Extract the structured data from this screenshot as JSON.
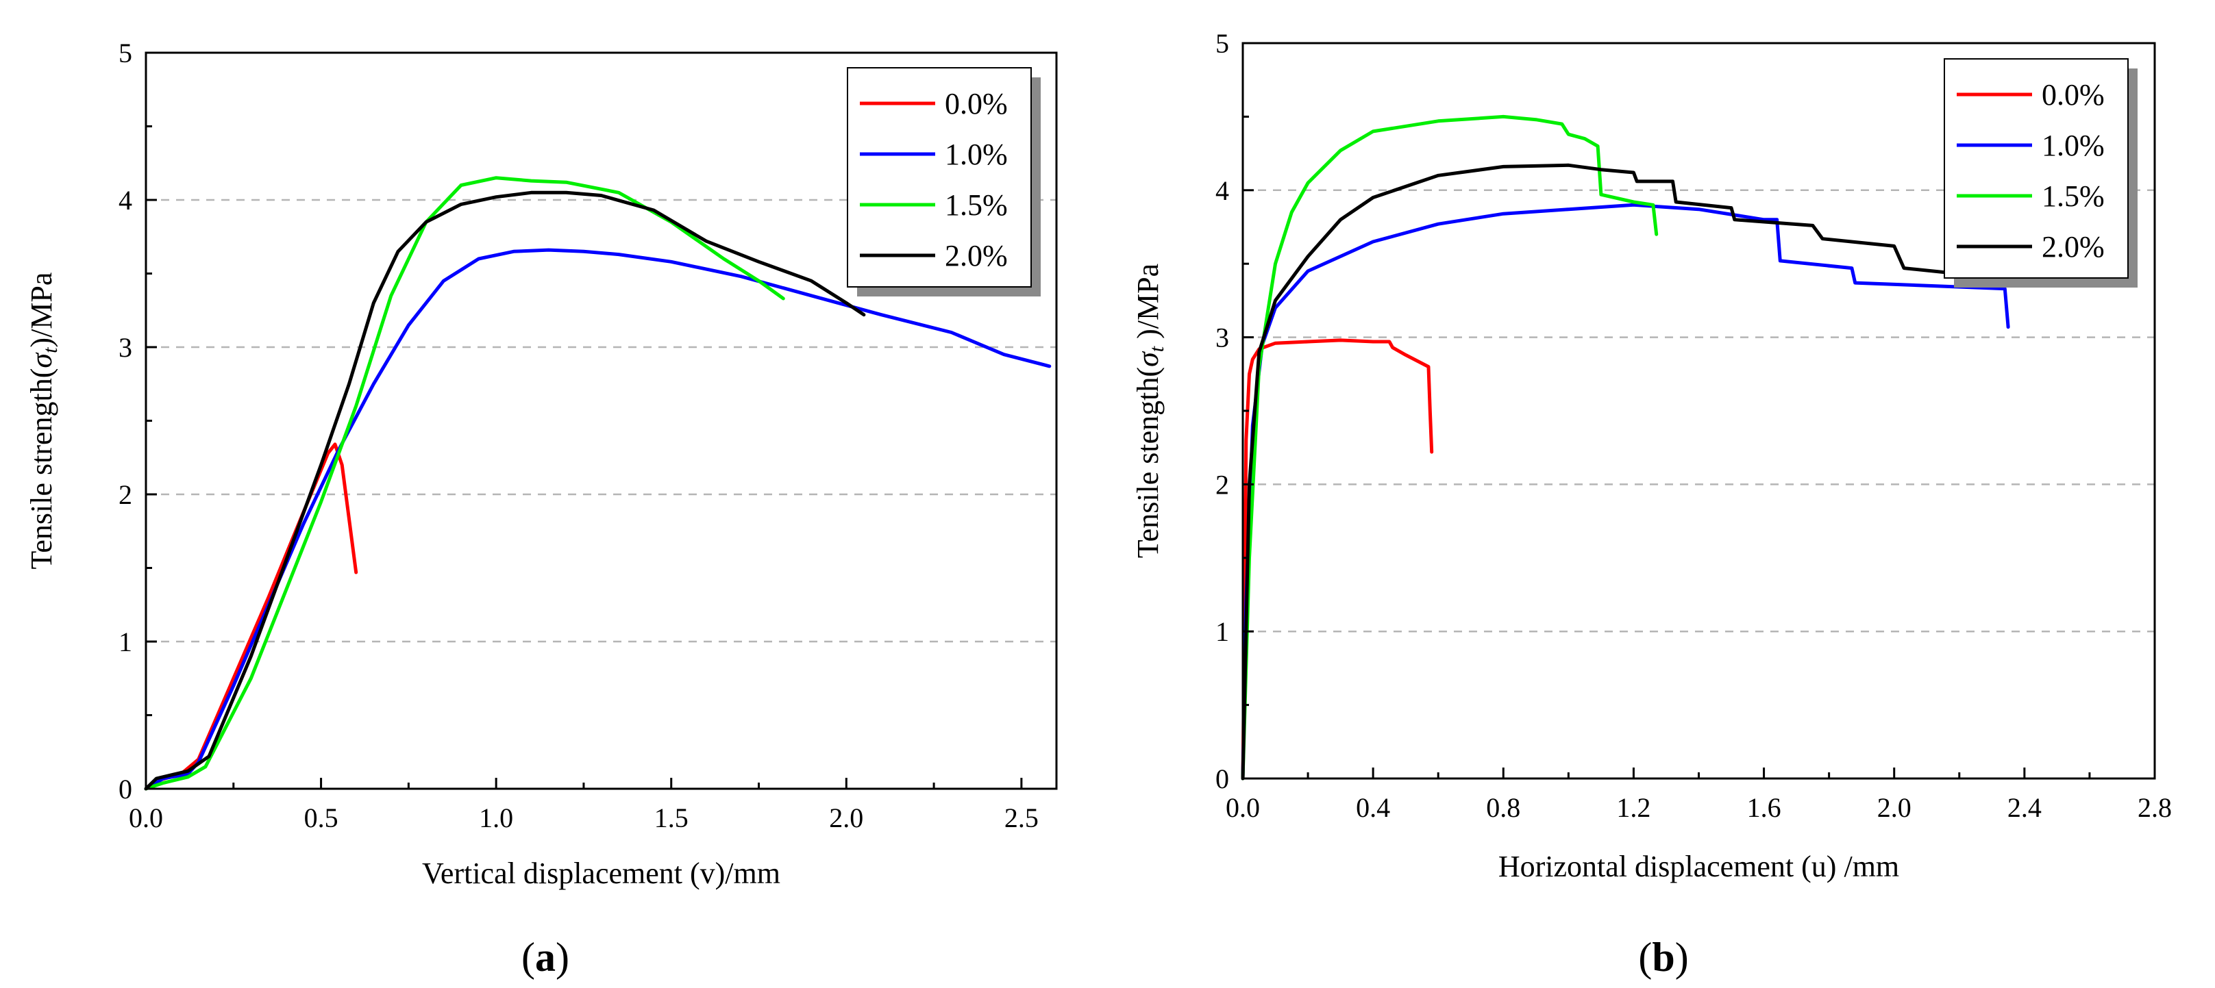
{
  "chart_data": [
    {
      "type": "line",
      "panel_label": "a",
      "xlabel": "Vertical displacement (v)/mm",
      "ylabel": {
        "prefix": "Tensile strength(",
        "symbol": "σ",
        "subscript": "t",
        "suffix": ")/MPa"
      },
      "xlim": [
        0,
        2.6
      ],
      "ylim": [
        0,
        5
      ],
      "xticks": [
        0.0,
        0.5,
        1.0,
        1.5,
        2.0,
        2.5
      ],
      "xtick_labels": [
        "0.0",
        "0.5",
        "1.0",
        "1.5",
        "2.0",
        "2.5"
      ],
      "yticks": [
        0,
        1,
        2,
        3,
        4,
        5
      ],
      "ytick_labels": [
        "0",
        "1",
        "2",
        "3",
        "4",
        "5"
      ],
      "grid": "horizontal dashed",
      "legend_position": "top-right",
      "series": [
        {
          "name": "0.0%",
          "color": "#ff0000",
          "x": [
            0.0,
            0.04,
            0.1,
            0.15,
            0.25,
            0.35,
            0.45,
            0.52,
            0.54,
            0.56,
            0.6
          ],
          "y": [
            0.0,
            0.06,
            0.1,
            0.2,
            0.75,
            1.3,
            1.88,
            2.28,
            2.34,
            2.2,
            1.47
          ]
        },
        {
          "name": "1.0%",
          "color": "#0000ff",
          "x": [
            0.0,
            0.05,
            0.12,
            0.15,
            0.25,
            0.35,
            0.45,
            0.55,
            0.65,
            0.75,
            0.85,
            0.95,
            1.05,
            1.15,
            1.25,
            1.35,
            1.5,
            1.7,
            1.9,
            2.1,
            2.3,
            2.45,
            2.58
          ],
          "y": [
            0.0,
            0.07,
            0.1,
            0.18,
            0.7,
            1.25,
            1.8,
            2.3,
            2.75,
            3.15,
            3.45,
            3.6,
            3.65,
            3.66,
            3.65,
            3.63,
            3.58,
            3.48,
            3.35,
            3.22,
            3.1,
            2.95,
            2.87
          ]
        },
        {
          "name": "1.5%",
          "color": "#00ee00",
          "x": [
            0.0,
            0.05,
            0.12,
            0.17,
            0.3,
            0.4,
            0.5,
            0.6,
            0.7,
            0.8,
            0.9,
            1.0,
            1.1,
            1.2,
            1.35,
            1.5,
            1.65,
            1.75,
            1.82
          ],
          "y": [
            0.0,
            0.04,
            0.08,
            0.15,
            0.75,
            1.35,
            1.95,
            2.6,
            3.35,
            3.85,
            4.1,
            4.15,
            4.13,
            4.12,
            4.05,
            3.85,
            3.6,
            3.45,
            3.33
          ]
        },
        {
          "name": "2.0%",
          "color": "#000000",
          "x": [
            0.0,
            0.03,
            0.12,
            0.18,
            0.3,
            0.4,
            0.5,
            0.58,
            0.65,
            0.72,
            0.8,
            0.9,
            1.0,
            1.1,
            1.2,
            1.3,
            1.45,
            1.6,
            1.75,
            1.9,
            2.0,
            2.05
          ],
          "y": [
            0.0,
            0.07,
            0.12,
            0.22,
            0.9,
            1.55,
            2.2,
            2.75,
            3.3,
            3.65,
            3.85,
            3.97,
            4.02,
            4.05,
            4.05,
            4.03,
            3.93,
            3.72,
            3.58,
            3.45,
            3.3,
            3.22
          ]
        }
      ]
    },
    {
      "type": "line",
      "panel_label": "b",
      "xlabel": "Horizontal displacement (u) /mm",
      "ylabel": {
        "prefix": "Tensile stength(",
        "symbol": "σ",
        "subscript": "t",
        "suffix": " )/MPa"
      },
      "xlim": [
        0,
        2.8
      ],
      "ylim": [
        0,
        5
      ],
      "xticks": [
        0.0,
        0.4,
        0.8,
        1.2,
        1.6,
        2.0,
        2.4,
        2.8
      ],
      "xtick_labels": [
        "0.0",
        "0.4",
        "0.8",
        "1.2",
        "1.6",
        "2.0",
        "2.4",
        "2.8"
      ],
      "yticks": [
        0,
        1,
        2,
        3,
        4,
        5
      ],
      "ytick_labels": [
        "0",
        "1",
        "2",
        "3",
        "4",
        "5"
      ],
      "grid": "horizontal dashed",
      "legend_position": "top-right",
      "series": [
        {
          "name": "0.0%",
          "color": "#ff0000",
          "x": [
            0.0,
            0.005,
            0.01,
            0.02,
            0.03,
            0.05,
            0.1,
            0.2,
            0.3,
            0.4,
            0.45,
            0.46,
            0.5,
            0.57,
            0.575,
            0.58
          ],
          "y": [
            0.0,
            1.0,
            2.3,
            2.75,
            2.85,
            2.92,
            2.96,
            2.97,
            2.98,
            2.97,
            2.97,
            2.93,
            2.88,
            2.8,
            2.5,
            2.22
          ]
        },
        {
          "name": "1.0%",
          "color": "#0000ff",
          "x": [
            0.0,
            0.01,
            0.03,
            0.06,
            0.1,
            0.2,
            0.4,
            0.6,
            0.8,
            1.0,
            1.2,
            1.4,
            1.6,
            1.64,
            1.65,
            1.87,
            1.88,
            2.34,
            2.345,
            2.35
          ],
          "y": [
            0.0,
            1.2,
            2.4,
            2.95,
            3.2,
            3.45,
            3.65,
            3.77,
            3.84,
            3.87,
            3.9,
            3.87,
            3.8,
            3.8,
            3.52,
            3.47,
            3.37,
            3.33,
            3.2,
            3.07
          ]
        },
        {
          "name": "1.5%",
          "color": "#00ee00",
          "x": [
            0.0,
            0.02,
            0.05,
            0.1,
            0.15,
            0.2,
            0.3,
            0.4,
            0.6,
            0.8,
            0.9,
            0.98,
            1.0,
            1.05,
            1.09,
            1.1,
            1.2,
            1.26,
            1.265,
            1.27
          ],
          "y": [
            0.0,
            1.5,
            2.8,
            3.5,
            3.85,
            4.05,
            4.27,
            4.4,
            4.47,
            4.5,
            4.48,
            4.45,
            4.38,
            4.35,
            4.3,
            3.97,
            3.92,
            3.9,
            3.8,
            3.7
          ]
        },
        {
          "name": "2.0%",
          "color": "#000000",
          "x": [
            0.0,
            0.02,
            0.05,
            0.1,
            0.2,
            0.3,
            0.4,
            0.6,
            0.8,
            1.0,
            1.1,
            1.2,
            1.21,
            1.32,
            1.33,
            1.5,
            1.51,
            1.75,
            1.78,
            2.0,
            2.03,
            2.25
          ],
          "y": [
            0.0,
            2.0,
            2.9,
            3.25,
            3.55,
            3.8,
            3.95,
            4.1,
            4.16,
            4.17,
            4.14,
            4.12,
            4.06,
            4.06,
            3.92,
            3.88,
            3.8,
            3.76,
            3.67,
            3.62,
            3.47,
            3.42
          ]
        }
      ]
    }
  ]
}
